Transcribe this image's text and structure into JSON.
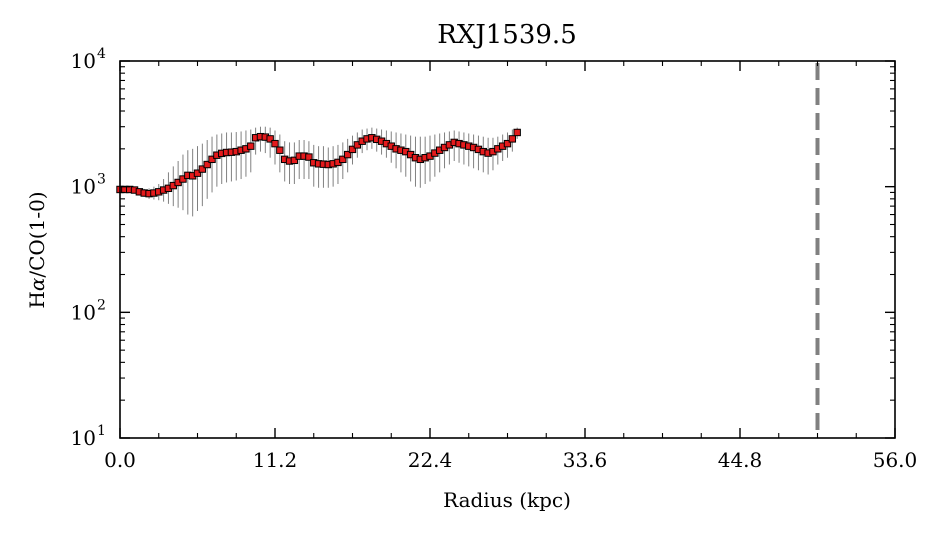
{
  "chart_data": {
    "type": "scatter",
    "title": "RXJ1539.5",
    "xlabel": "Radius (kpc)",
    "ylabel_parts": {
      "prefix": "H",
      "greek": "α",
      "suffix": "/CO(1-0)"
    },
    "xlim": [
      0.0,
      56.0
    ],
    "ylim": [
      10,
      10000
    ],
    "yscale": "log",
    "x_ticks": [
      "0.0",
      "11.2",
      "22.4",
      "33.6",
      "44.8",
      "56.0"
    ],
    "y_ticks": [
      {
        "base": "10",
        "exp": "1",
        "value": 10
      },
      {
        "base": "10",
        "exp": "2",
        "value": 100
      },
      {
        "base": "10",
        "exp": "3",
        "value": 1000
      },
      {
        "base": "10",
        "exp": "4",
        "value": 10000
      }
    ],
    "vline_x": 50.4,
    "colors": {
      "marker": "#e41a1c",
      "edge": "#000000",
      "errorbar": "#808080",
      "vline": "#808080"
    },
    "series": [
      {
        "points": [
          [
            0.0,
            950,
            920,
            980
          ],
          [
            0.35,
            950,
            910,
            990
          ],
          [
            0.7,
            950,
            900,
            1000
          ],
          [
            1.05,
            940,
            890,
            990
          ],
          [
            1.4,
            910,
            850,
            970
          ],
          [
            1.75,
            890,
            830,
            960
          ],
          [
            2.1,
            880,
            800,
            970
          ],
          [
            2.45,
            890,
            790,
            1000
          ],
          [
            2.8,
            910,
            780,
            1050
          ],
          [
            3.15,
            940,
            760,
            1150
          ],
          [
            3.5,
            970,
            730,
            1300
          ],
          [
            3.85,
            1020,
            700,
            1450
          ],
          [
            4.2,
            1080,
            680,
            1600
          ],
          [
            4.55,
            1150,
            650,
            1800
          ],
          [
            4.9,
            1230,
            600,
            1950
          ],
          [
            5.25,
            1220,
            580,
            2000
          ],
          [
            5.6,
            1280,
            640,
            2100
          ],
          [
            5.95,
            1380,
            700,
            2200
          ],
          [
            6.3,
            1500,
            800,
            2350
          ],
          [
            6.65,
            1650,
            900,
            2500
          ],
          [
            7.0,
            1780,
            1000,
            2600
          ],
          [
            7.35,
            1840,
            1050,
            2650
          ],
          [
            7.7,
            1870,
            1080,
            2700
          ],
          [
            8.05,
            1880,
            1100,
            2700
          ],
          [
            8.4,
            1900,
            1120,
            2720
          ],
          [
            8.75,
            1950,
            1150,
            2750
          ],
          [
            9.1,
            2000,
            1200,
            2800
          ],
          [
            9.45,
            2100,
            1300,
            2850
          ],
          [
            9.8,
            2450,
            1800,
            2950
          ],
          [
            10.15,
            2500,
            1900,
            3000
          ],
          [
            10.5,
            2480,
            1850,
            3000
          ],
          [
            10.85,
            2400,
            1700,
            2950
          ],
          [
            11.2,
            2200,
            1500,
            2800
          ],
          [
            11.55,
            1950,
            1300,
            2600
          ],
          [
            11.9,
            1650,
            1100,
            2300
          ],
          [
            12.25,
            1600,
            1050,
            2250
          ],
          [
            12.6,
            1620,
            1050,
            2250
          ],
          [
            12.95,
            1750,
            1150,
            2350
          ],
          [
            13.3,
            1750,
            1150,
            2350
          ],
          [
            13.65,
            1720,
            1150,
            2300
          ],
          [
            14.0,
            1550,
            1000,
            2150
          ],
          [
            14.35,
            1520,
            980,
            2100
          ],
          [
            14.7,
            1510,
            980,
            2100
          ],
          [
            15.05,
            1500,
            980,
            2050
          ],
          [
            15.4,
            1520,
            1000,
            2100
          ],
          [
            15.75,
            1560,
            1050,
            2150
          ],
          [
            16.1,
            1650,
            1150,
            2250
          ],
          [
            16.45,
            1800,
            1300,
            2400
          ],
          [
            16.8,
            1980,
            1500,
            2550
          ],
          [
            17.15,
            2150,
            1700,
            2700
          ],
          [
            17.5,
            2300,
            1850,
            2850
          ],
          [
            17.85,
            2400,
            1950,
            2900
          ],
          [
            18.2,
            2450,
            2000,
            2950
          ],
          [
            18.55,
            2380,
            1900,
            2900
          ],
          [
            18.9,
            2300,
            1800,
            2850
          ],
          [
            19.25,
            2200,
            1700,
            2800
          ],
          [
            19.6,
            2100,
            1550,
            2750
          ],
          [
            19.95,
            2000,
            1400,
            2700
          ],
          [
            20.3,
            1950,
            1300,
            2650
          ],
          [
            20.65,
            1900,
            1200,
            2600
          ],
          [
            21.0,
            1800,
            1100,
            2550
          ],
          [
            21.35,
            1700,
            1000,
            2500
          ],
          [
            21.7,
            1650,
            980,
            2500
          ],
          [
            22.05,
            1700,
            1050,
            2500
          ],
          [
            22.4,
            1750,
            1100,
            2550
          ],
          [
            22.75,
            1850,
            1200,
            2600
          ],
          [
            23.1,
            1950,
            1300,
            2650
          ],
          [
            23.45,
            2050,
            1400,
            2700
          ],
          [
            23.8,
            2150,
            1500,
            2750
          ],
          [
            24.15,
            2250,
            1600,
            2800
          ],
          [
            24.5,
            2200,
            1550,
            2750
          ],
          [
            24.85,
            2150,
            1500,
            2700
          ],
          [
            25.2,
            2100,
            1450,
            2650
          ],
          [
            25.55,
            2050,
            1400,
            2600
          ],
          [
            25.9,
            1980,
            1350,
            2550
          ],
          [
            26.25,
            1900,
            1300,
            2500
          ],
          [
            26.6,
            1850,
            1250,
            2450
          ],
          [
            26.95,
            1900,
            1350,
            2450
          ],
          [
            27.3,
            2000,
            1500,
            2500
          ],
          [
            27.65,
            2100,
            1600,
            2600
          ],
          [
            28.0,
            2200,
            1700,
            2700
          ],
          [
            28.35,
            2400,
            1900,
            2850
          ],
          [
            28.7,
            2700,
            2400,
            2950
          ]
        ]
      }
    ]
  }
}
